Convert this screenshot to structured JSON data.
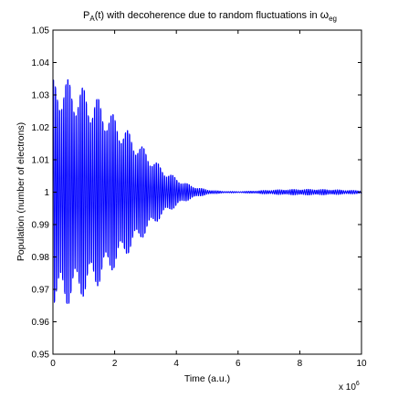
{
  "chart_data": {
    "type": "line",
    "title": {
      "prefix": "P",
      "prefix_sub": "A",
      "middle": "(t) with decoherence due to random fluctuations in ",
      "symbol": "ω",
      "symbol_sub": "eg"
    },
    "xlabel": "Time (a.u.)",
    "ylabel": "Population (number of electrons)",
    "x_multiplier_label": "x 10",
    "x_multiplier_exponent": "6",
    "xlim": [
      0,
      10
    ],
    "ylim": [
      0.95,
      1.05
    ],
    "x_ticks": [
      "0",
      "2",
      "4",
      "6",
      "8",
      "10"
    ],
    "y_ticks": [
      "0.95",
      "0.96",
      "0.97",
      "0.98",
      "0.99",
      "1",
      "1.01",
      "1.02",
      "1.03",
      "1.04",
      "1.05"
    ],
    "grid": false,
    "series": [
      {
        "color": "#0000ff",
        "baseline": 1.0,
        "envelope": {
          "x": [
            0,
            0.2,
            0.5,
            1,
            1.5,
            2,
            2.5,
            3,
            3.5,
            4,
            4.5,
            5,
            5.5,
            6,
            6.5,
            7,
            7.5,
            8,
            8.5,
            9,
            9.5,
            10
          ],
          "amplitude": [
            0.04,
            0.041,
            0.04,
            0.037,
            0.033,
            0.027,
            0.021,
            0.015,
            0.009,
            0.005,
            0.0022,
            0.0008,
            0.0003,
            0.0002,
            0.0004,
            0.0007,
            0.0009,
            0.001,
            0.001,
            0.0009,
            0.0007,
            0.0005
          ]
        },
        "oscillation_cycles": 150
      }
    ]
  }
}
